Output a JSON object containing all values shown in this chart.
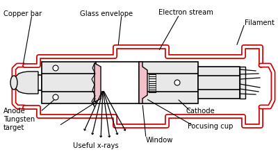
{
  "bg_color": "#ffffff",
  "line_color": "#000000",
  "red_color": "#cc0000",
  "pink_color": "#f2c0c8",
  "gray_color": "#e8e8e8",
  "labels": {
    "copper_bar": "Copper bar",
    "glass_envelope": "Glass envelope",
    "electron_stream": "Electron stream",
    "filament": "Filament",
    "anode": "Anode",
    "tungsten_target": "Tungsten\ntarget",
    "useful_xrays": "Useful x-rays",
    "window": "Window",
    "cathode": "Cathode",
    "focusing_cup": "Focusing cup"
  },
  "figsize": [
    4.0,
    2.3
  ],
  "dpi": 100
}
